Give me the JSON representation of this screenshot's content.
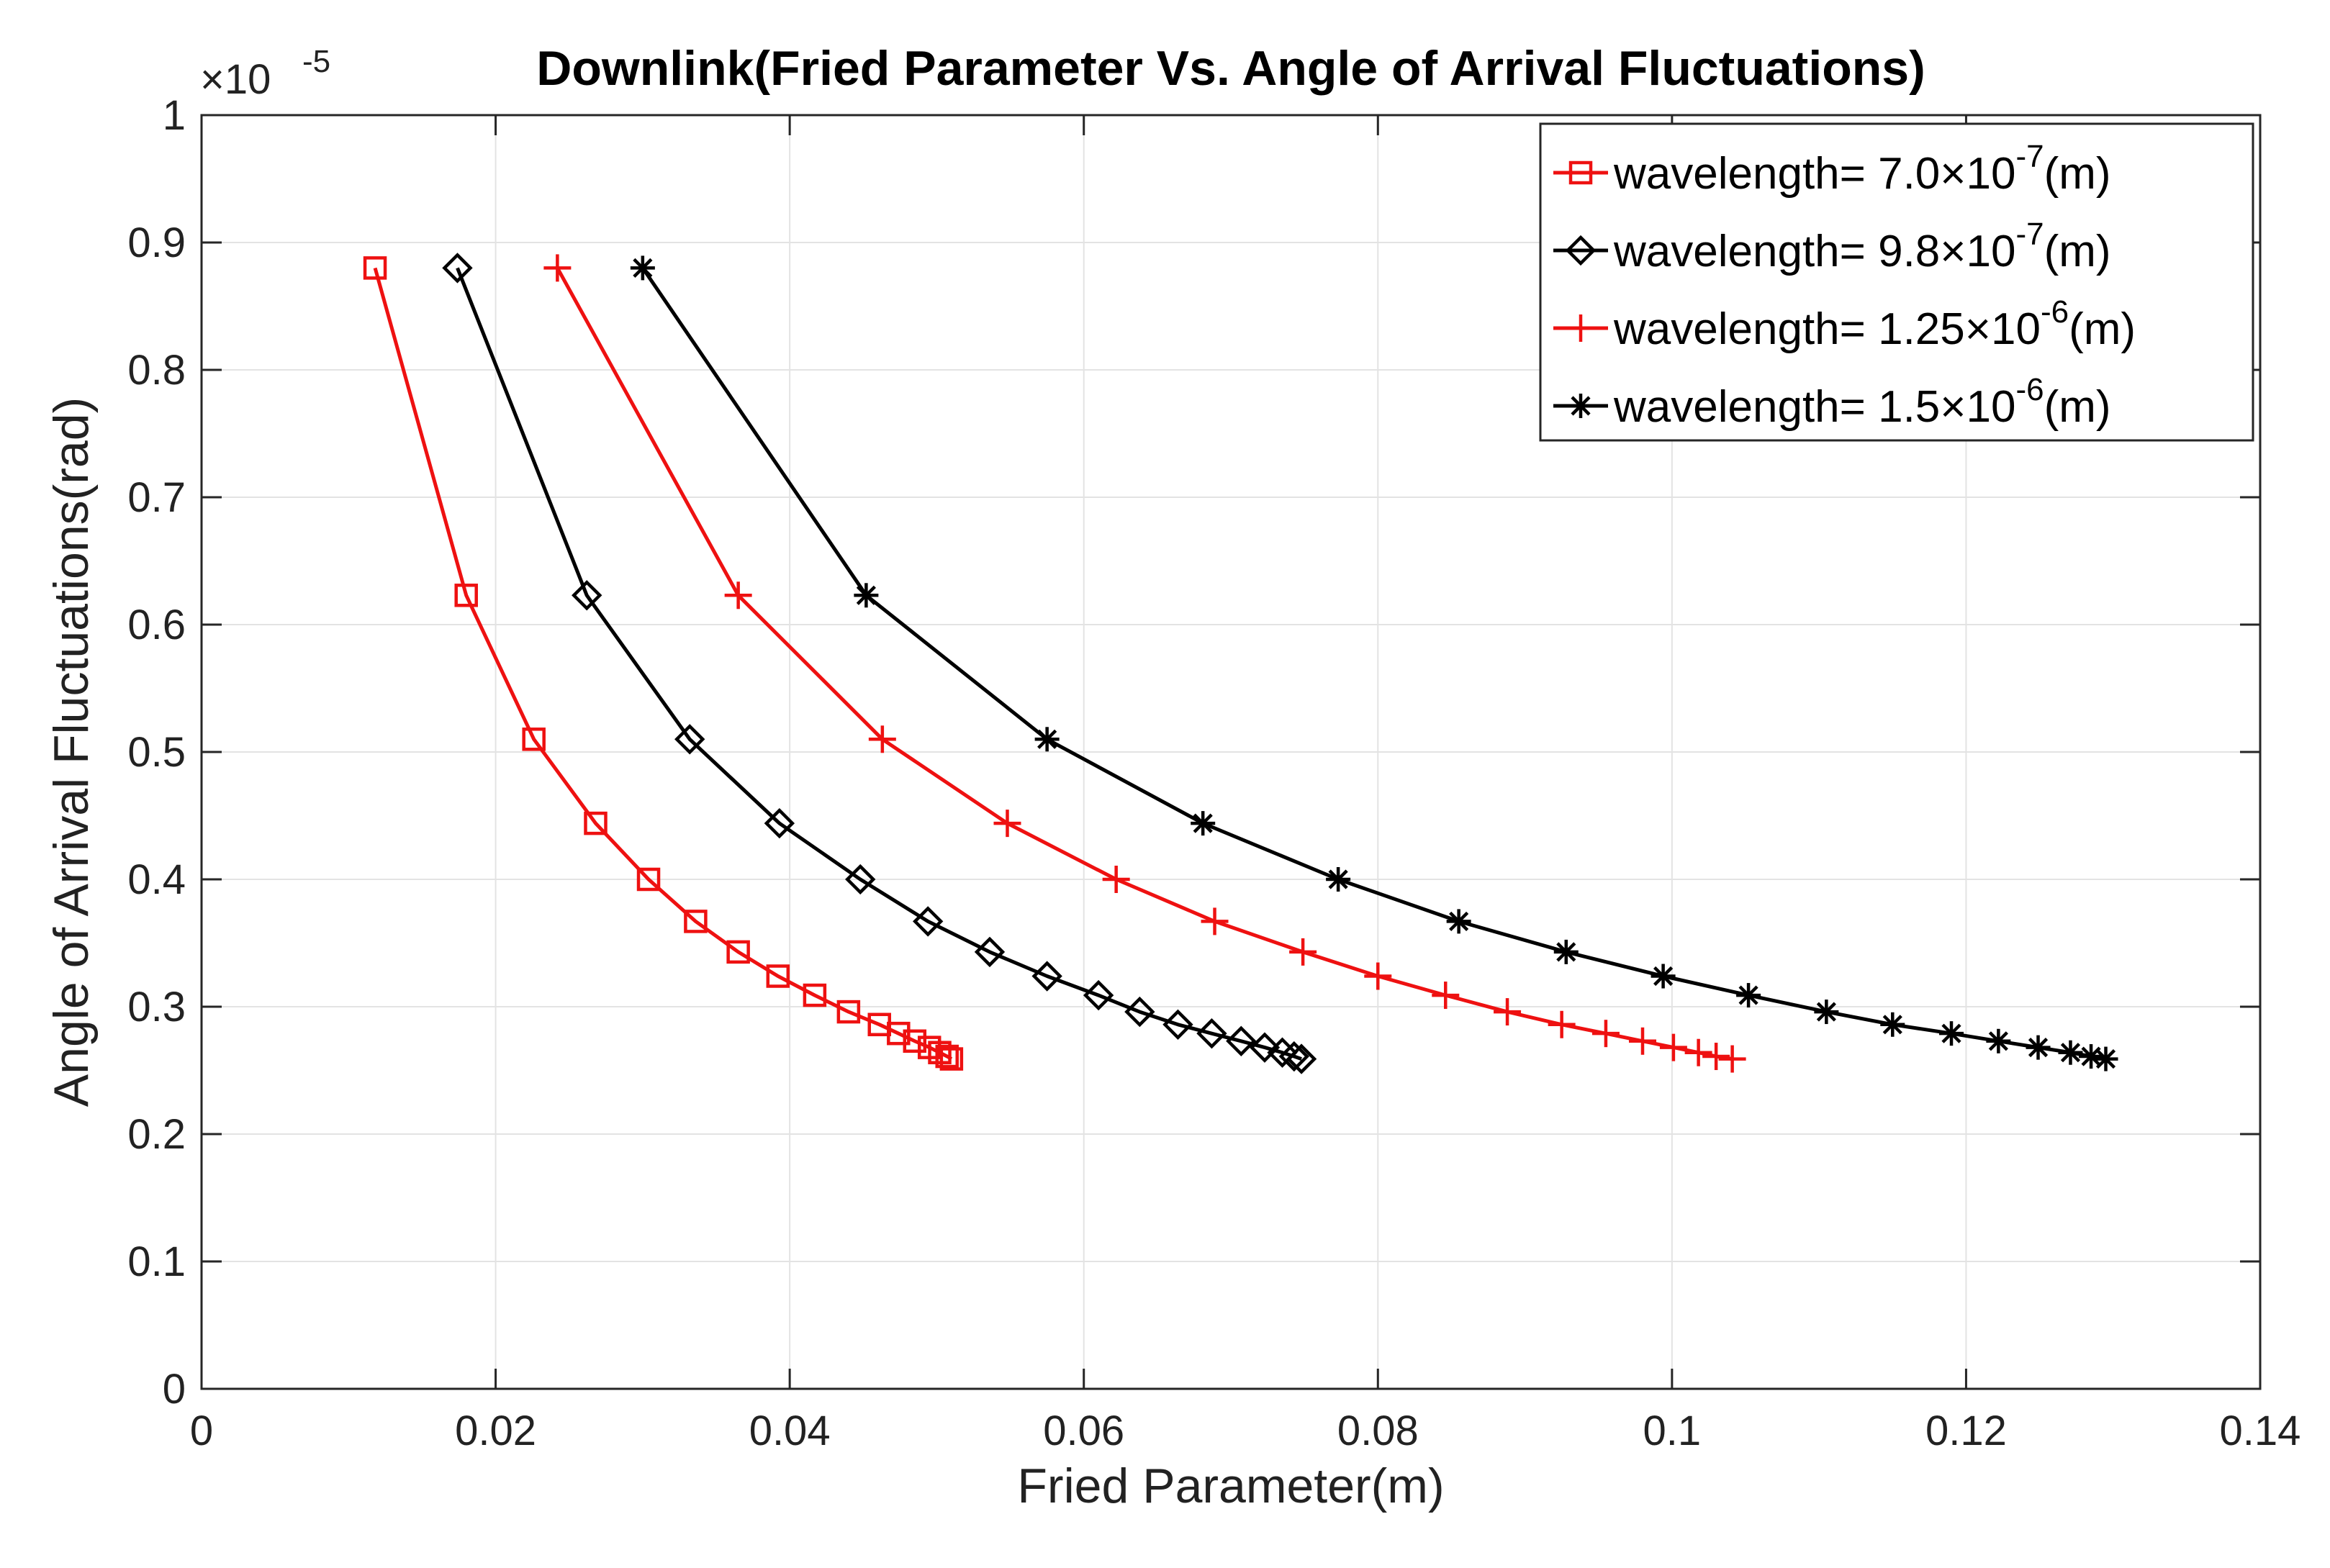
{
  "chart_data": {
    "type": "line",
    "title": "Downlink(Fried Parameter Vs. Angle of Arrival Fluctuations)",
    "xlabel": "Fried Parameter(m)",
    "ylabel": "Angle of Arrival Fluctuations(rad)",
    "xlim": [
      0,
      0.14
    ],
    "ylim": [
      0,
      1
    ],
    "y_exponent_label": {
      "base": "×10",
      "exponent": "-5"
    },
    "xticks": [
      0,
      0.02,
      0.04,
      0.06,
      0.08,
      0.1,
      0.12,
      0.14
    ],
    "xtick_labels": [
      "0",
      "0.02",
      "0.04",
      "0.06",
      "0.08",
      "0.1",
      "0.12",
      "0.14"
    ],
    "yticks": [
      0,
      0.1,
      0.2,
      0.3,
      0.4,
      0.5,
      0.6,
      0.7,
      0.8,
      0.9,
      1
    ],
    "ytick_labels": [
      "0",
      "0.1",
      "0.2",
      "0.3",
      "0.4",
      "0.5",
      "0.6",
      "0.7",
      "0.8",
      "0.9",
      "1"
    ],
    "grid": true,
    "legend_position": "top-right",
    "series": [
      {
        "name": "wavelength= 7.0×10^-7(m)",
        "legend_main": "wavelength= 7.0×10",
        "legend_exp": "-7",
        "legend_unit": "(m)",
        "color": "#ee1111",
        "marker": "square",
        "x": [
          0.0118,
          0.018,
          0.0226,
          0.0268,
          0.0304,
          0.0336,
          0.0365,
          0.0392,
          0.0417,
          0.044,
          0.0461,
          0.0474,
          0.0485,
          0.0495,
          0.0502,
          0.0507,
          0.051
        ],
        "y": [
          0.88,
          0.623,
          0.51,
          0.444,
          0.4,
          0.367,
          0.343,
          0.324,
          0.309,
          0.296,
          0.286,
          0.279,
          0.273,
          0.268,
          0.264,
          0.261,
          0.259
        ]
      },
      {
        "name": "wavelength= 9.8×10^-7(m)",
        "legend_main": "wavelength= 9.8×10",
        "legend_exp": "-7",
        "legend_unit": "(m)",
        "color": "#000000",
        "marker": "diamond",
        "x": [
          0.0174,
          0.0262,
          0.0332,
          0.0393,
          0.0448,
          0.0494,
          0.0536,
          0.0575,
          0.061,
          0.0638,
          0.0664,
          0.0687,
          0.0707,
          0.0723,
          0.0735,
          0.0743,
          0.0748
        ],
        "y": [
          0.88,
          0.623,
          0.51,
          0.444,
          0.4,
          0.367,
          0.343,
          0.324,
          0.309,
          0.296,
          0.286,
          0.279,
          0.273,
          0.268,
          0.264,
          0.261,
          0.259
        ]
      },
      {
        "name": "wavelength= 1.25×10^-6(m)",
        "legend_main": "wavelength= 1.25×10",
        "legend_exp": "-6",
        "legend_unit": "(m)",
        "color": "#ee1111",
        "marker": "plus",
        "x": [
          0.0242,
          0.0365,
          0.0463,
          0.0548,
          0.0622,
          0.0689,
          0.0749,
          0.08,
          0.0846,
          0.0888,
          0.0925,
          0.0955,
          0.098,
          0.1001,
          0.1018,
          0.103,
          0.1041
        ],
        "y": [
          0.88,
          0.623,
          0.51,
          0.444,
          0.4,
          0.367,
          0.343,
          0.324,
          0.309,
          0.296,
          0.286,
          0.279,
          0.273,
          0.268,
          0.264,
          0.261,
          0.259
        ]
      },
      {
        "name": "wavelength= 1.5×10^-6(m)",
        "legend_main": "wavelength= 1.5×10",
        "legend_exp": "-6",
        "legend_unit": "(m)",
        "color": "#000000",
        "marker": "asterisk",
        "x": [
          0.03,
          0.0452,
          0.0575,
          0.0681,
          0.0773,
          0.0855,
          0.0928,
          0.0994,
          0.1052,
          0.1105,
          0.115,
          0.119,
          0.1222,
          0.1249,
          0.1271,
          0.1285,
          0.1295
        ],
        "y": [
          0.88,
          0.623,
          0.51,
          0.444,
          0.4,
          0.367,
          0.343,
          0.324,
          0.309,
          0.296,
          0.286,
          0.279,
          0.273,
          0.268,
          0.264,
          0.261,
          0.259
        ]
      }
    ]
  }
}
